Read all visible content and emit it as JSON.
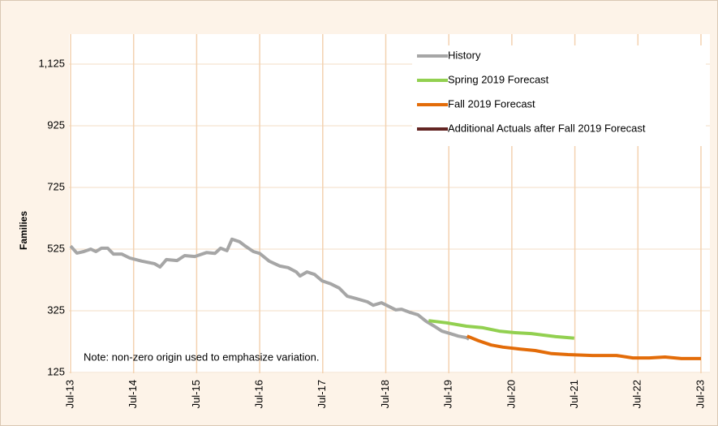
{
  "chart_data": {
    "type": "line",
    "y_label": "Families",
    "note": "Note: non-zero origin used to emphasize variation.",
    "ylim": [
      125,
      1225
    ],
    "yticks": [
      125,
      325,
      525,
      725,
      925,
      {
        "value": 1125,
        "label": "1,125"
      }
    ],
    "xlim": [
      2013.5,
      2023.5
    ],
    "xticks": [
      {
        "value": 2013.5,
        "label": "Jul-13"
      },
      {
        "value": 2014.5,
        "label": "Jul-14"
      },
      {
        "value": 2015.5,
        "label": "Jul-15"
      },
      {
        "value": 2016.5,
        "label": "Jul-16"
      },
      {
        "value": 2017.5,
        "label": "Jul-17"
      },
      {
        "value": 2018.5,
        "label": "Jul-18"
      },
      {
        "value": 2019.5,
        "label": "Jul-19"
      },
      {
        "value": 2020.5,
        "label": "Jul-20"
      },
      {
        "value": 2021.5,
        "label": "Jul-21"
      },
      {
        "value": 2022.5,
        "label": "Jul-22"
      },
      {
        "value": 2023.5,
        "label": "Jul-23"
      }
    ],
    "grid": true,
    "legend": "top-right",
    "series": [
      {
        "name": "History",
        "color": "#a6a6a6",
        "x": [
          2013.5,
          2013.6,
          2013.71,
          2013.82,
          2013.9,
          2013.99,
          2014.09,
          2014.18,
          2014.31,
          2014.44,
          2014.63,
          2014.83,
          2014.92,
          2015.02,
          2015.19,
          2015.31,
          2015.47,
          2015.66,
          2015.79,
          2015.88,
          2015.98,
          2016.06,
          2016.18,
          2016.27,
          2016.4,
          2016.5,
          2016.65,
          2016.82,
          2016.95,
          2017.08,
          2017.14,
          2017.25,
          2017.37,
          2017.49,
          2017.63,
          2017.76,
          2017.89,
          2018.04,
          2018.21,
          2018.3,
          2018.43,
          2018.56,
          2018.66,
          2018.75,
          2018.88,
          2019.01,
          2019.14,
          2019.27,
          2019.39,
          2019.52,
          2019.65,
          2019.78,
          2019.82
        ],
        "values": [
          535,
          512,
          517,
          525,
          517,
          528,
          528,
          509,
          509,
          496,
          486,
          478,
          467,
          491,
          488,
          504,
          501,
          514,
          511,
          528,
          520,
          557,
          549,
          535,
          517,
          511,
          486,
          470,
          465,
          451,
          438,
          451,
          443,
          422,
          412,
          399,
          372,
          364,
          354,
          343,
          351,
          338,
          328,
          330,
          320,
          312,
          291,
          275,
          259,
          251,
          243,
          238,
          233
        ]
      },
      {
        "name": "Spring 2019 Forecast",
        "color": "#92d050",
        "x": [
          2019.18,
          2019.46,
          2019.78,
          2020.04,
          2020.3,
          2020.55,
          2020.81,
          2021.0,
          2021.2,
          2021.49
        ],
        "values": [
          293,
          286,
          275,
          270,
          259,
          254,
          251,
          246,
          241,
          236
        ]
      },
      {
        "name": "Fall 2019 Forecast",
        "color": "#e36c09",
        "x": [
          2019.79,
          2019.97,
          2020.17,
          2020.36,
          2020.62,
          2020.87,
          2021.13,
          2021.39,
          2021.78,
          2022.16,
          2022.42,
          2022.68,
          2022.93,
          2023.19,
          2023.5
        ],
        "values": [
          243,
          228,
          214,
          207,
          201,
          196,
          186,
          183,
          180,
          180,
          172,
          172,
          175,
          170,
          170
        ]
      },
      {
        "name": "Additional Actuals after Fall 2019 Forecast",
        "color": "#632523",
        "x": [],
        "values": []
      }
    ]
  }
}
